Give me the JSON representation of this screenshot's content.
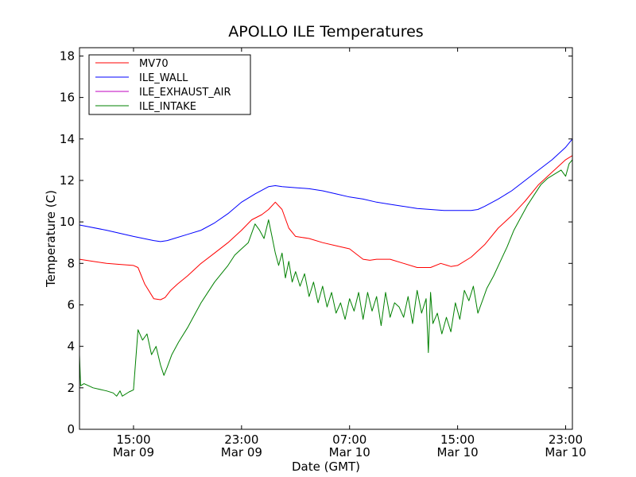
{
  "chart_data": {
    "type": "line",
    "title": "APOLLO ILE Temperatures",
    "xlabel": "Date (GMT)",
    "ylabel": "Temperature (C)",
    "xlim": [
      "2010-03-09 11:00",
      "2010-03-10 23:30"
    ],
    "ylim": [
      0,
      18.4
    ],
    "yticks": [
      0,
      2,
      4,
      6,
      8,
      10,
      12,
      14,
      16,
      18
    ],
    "xticks": [
      {
        "x": "2010-03-09 15:00",
        "time": "15:00",
        "date": "Mar 09"
      },
      {
        "x": "2010-03-09 23:00",
        "time": "23:00",
        "date": "Mar 09"
      },
      {
        "x": "2010-03-10 07:00",
        "time": "07:00",
        "date": "Mar 10"
      },
      {
        "x": "2010-03-10 15:00",
        "time": "15:00",
        "date": "Mar 10"
      },
      {
        "x": "2010-03-10 23:00",
        "time": "23:00",
        "date": "Mar 10"
      }
    ],
    "grid": false,
    "legend_position": "top-left",
    "series": [
      {
        "name": "MV70",
        "color": "#ff0000",
        "x": [
          "2010-03-09 11:00",
          "2010-03-09 12:00",
          "2010-03-09 13:00",
          "2010-03-09 14:00",
          "2010-03-09 15:00",
          "2010-03-09 15:20",
          "2010-03-09 15:50",
          "2010-03-09 16:30",
          "2010-03-09 17:00",
          "2010-03-09 17:20",
          "2010-03-09 17:45",
          "2010-03-09 18:15",
          "2010-03-09 19:00",
          "2010-03-09 20:00",
          "2010-03-09 21:00",
          "2010-03-09 22:00",
          "2010-03-09 23:00",
          "2010-03-09 23:45",
          "2010-03-10 00:30",
          "2010-03-10 01:00",
          "2010-03-10 01:30",
          "2010-03-10 02:00",
          "2010-03-10 02:30",
          "2010-03-10 03:00",
          "2010-03-10 04:00",
          "2010-03-10 05:00",
          "2010-03-10 06:00",
          "2010-03-10 07:00",
          "2010-03-10 08:00",
          "2010-03-10 08:30",
          "2010-03-10 09:00",
          "2010-03-10 10:00",
          "2010-03-10 11:00",
          "2010-03-10 12:00",
          "2010-03-10 13:00",
          "2010-03-10 13:45",
          "2010-03-10 14:15",
          "2010-03-10 14:30",
          "2010-03-10 15:00",
          "2010-03-10 16:00",
          "2010-03-10 17:00",
          "2010-03-10 18:00",
          "2010-03-10 18:30",
          "2010-03-10 19:00",
          "2010-03-10 20:00",
          "2010-03-10 21:00",
          "2010-03-10 22:00",
          "2010-03-10 23:00",
          "2010-03-10 23:30"
        ],
        "y": [
          8.2,
          8.1,
          8.0,
          7.95,
          7.9,
          7.8,
          7.0,
          6.3,
          6.25,
          6.35,
          6.7,
          7.0,
          7.4,
          8.0,
          8.5,
          9.0,
          9.6,
          10.1,
          10.35,
          10.6,
          10.95,
          10.6,
          9.7,
          9.3,
          9.2,
          9.0,
          8.85,
          8.7,
          8.2,
          8.15,
          8.2,
          8.2,
          8.0,
          7.8,
          7.8,
          8.0,
          7.9,
          7.85,
          7.9,
          8.3,
          8.9,
          9.7,
          10.0,
          10.3,
          11.0,
          11.8,
          12.4,
          13.0,
          13.2
        ]
      },
      {
        "name": "ILE_WALL",
        "color": "#0000ff",
        "x": [
          "2010-03-09 11:00",
          "2010-03-09 13:00",
          "2010-03-09 15:00",
          "2010-03-09 16:30",
          "2010-03-09 17:00",
          "2010-03-09 17:30",
          "2010-03-09 18:00",
          "2010-03-09 19:00",
          "2010-03-09 20:00",
          "2010-03-09 21:00",
          "2010-03-09 22:00",
          "2010-03-09 23:00",
          "2010-03-10 00:00",
          "2010-03-10 01:00",
          "2010-03-10 01:30",
          "2010-03-10 02:00",
          "2010-03-10 03:00",
          "2010-03-10 04:00",
          "2010-03-10 05:00",
          "2010-03-10 06:00",
          "2010-03-10 07:00",
          "2010-03-10 08:00",
          "2010-03-10 09:00",
          "2010-03-10 10:00",
          "2010-03-10 11:00",
          "2010-03-10 12:00",
          "2010-03-10 13:00",
          "2010-03-10 14:00",
          "2010-03-10 15:00",
          "2010-03-10 16:00",
          "2010-03-10 16:30",
          "2010-03-10 17:00",
          "2010-03-10 18:00",
          "2010-03-10 19:00",
          "2010-03-10 20:00",
          "2010-03-10 21:00",
          "2010-03-10 22:00",
          "2010-03-10 23:00",
          "2010-03-10 23:30"
        ],
        "y": [
          9.85,
          9.6,
          9.3,
          9.1,
          9.05,
          9.1,
          9.2,
          9.4,
          9.6,
          9.95,
          10.4,
          10.95,
          11.35,
          11.7,
          11.75,
          11.7,
          11.65,
          11.6,
          11.5,
          11.35,
          11.2,
          11.1,
          10.95,
          10.85,
          10.75,
          10.65,
          10.6,
          10.55,
          10.55,
          10.55,
          10.6,
          10.75,
          11.1,
          11.5,
          12.0,
          12.5,
          13.0,
          13.6,
          14.0
        ]
      },
      {
        "name": "ILE_EXHAUST_AIR",
        "color": "#bf00bf",
        "x": [],
        "y": []
      },
      {
        "name": "ILE_INTAKE",
        "color": "#008000",
        "x": [
          "2010-03-09 11:00",
          "2010-03-09 11:05",
          "2010-03-09 11:20",
          "2010-03-09 12:00",
          "2010-03-09 13:00",
          "2010-03-09 13:30",
          "2010-03-09 13:45",
          "2010-03-09 14:00",
          "2010-03-09 14:10",
          "2010-03-09 14:40",
          "2010-03-09 15:00",
          "2010-03-09 15:20",
          "2010-03-09 15:40",
          "2010-03-09 16:00",
          "2010-03-09 16:20",
          "2010-03-09 16:40",
          "2010-03-09 17:00",
          "2010-03-09 17:15",
          "2010-03-09 17:30",
          "2010-03-09 17:50",
          "2010-03-09 18:20",
          "2010-03-09 19:00",
          "2010-03-09 19:30",
          "2010-03-09 20:00",
          "2010-03-09 20:30",
          "2010-03-09 21:00",
          "2010-03-09 21:30",
          "2010-03-09 22:00",
          "2010-03-09 22:30",
          "2010-03-09 23:00",
          "2010-03-09 23:30",
          "2010-03-10 00:00",
          "2010-03-10 00:20",
          "2010-03-10 00:40",
          "2010-03-10 01:00",
          "2010-03-10 01:15",
          "2010-03-10 01:30",
          "2010-03-10 01:45",
          "2010-03-10 02:00",
          "2010-03-10 02:15",
          "2010-03-10 02:30",
          "2010-03-10 02:45",
          "2010-03-10 03:00",
          "2010-03-10 03:20",
          "2010-03-10 03:40",
          "2010-03-10 04:00",
          "2010-03-10 04:20",
          "2010-03-10 04:40",
          "2010-03-10 05:00",
          "2010-03-10 05:20",
          "2010-03-10 05:40",
          "2010-03-10 06:00",
          "2010-03-10 06:20",
          "2010-03-10 06:40",
          "2010-03-10 07:00",
          "2010-03-10 07:20",
          "2010-03-10 07:40",
          "2010-03-10 08:00",
          "2010-03-10 08:20",
          "2010-03-10 08:40",
          "2010-03-10 09:00",
          "2010-03-10 09:20",
          "2010-03-10 09:40",
          "2010-03-10 10:00",
          "2010-03-10 10:20",
          "2010-03-10 10:40",
          "2010-03-10 11:00",
          "2010-03-10 11:20",
          "2010-03-10 11:40",
          "2010-03-10 12:00",
          "2010-03-10 12:20",
          "2010-03-10 12:40",
          "2010-03-10 12:50",
          "2010-03-10 13:00",
          "2010-03-10 13:10",
          "2010-03-10 13:30",
          "2010-03-10 13:50",
          "2010-03-10 14:10",
          "2010-03-10 14:30",
          "2010-03-10 14:50",
          "2010-03-10 15:10",
          "2010-03-10 15:30",
          "2010-03-10 15:50",
          "2010-03-10 16:10",
          "2010-03-10 16:30",
          "2010-03-10 16:50",
          "2010-03-10 17:10",
          "2010-03-10 17:40",
          "2010-03-10 18:10",
          "2010-03-10 18:40",
          "2010-03-10 19:10",
          "2010-03-10 19:40",
          "2010-03-10 20:10",
          "2010-03-10 20:40",
          "2010-03-10 21:10",
          "2010-03-10 21:40",
          "2010-03-10 22:10",
          "2010-03-10 22:40",
          "2010-03-10 23:00",
          "2010-03-10 23:15",
          "2010-03-10 23:30"
        ],
        "y": [
          3.6,
          2.1,
          2.2,
          2.0,
          1.85,
          1.75,
          1.6,
          1.85,
          1.6,
          1.8,
          1.9,
          4.8,
          4.3,
          4.6,
          3.6,
          4.0,
          3.1,
          2.6,
          3.0,
          3.6,
          4.2,
          4.9,
          5.5,
          6.1,
          6.6,
          7.1,
          7.5,
          7.9,
          8.4,
          8.7,
          9.0,
          9.9,
          9.6,
          9.2,
          10.1,
          9.3,
          8.5,
          7.9,
          8.5,
          7.3,
          8.1,
          7.1,
          7.6,
          6.9,
          7.5,
          6.4,
          7.1,
          6.1,
          6.9,
          5.9,
          6.6,
          5.6,
          6.1,
          5.3,
          6.3,
          5.7,
          6.6,
          5.3,
          6.6,
          5.7,
          6.4,
          5.0,
          6.6,
          5.4,
          6.1,
          5.9,
          5.4,
          6.4,
          5.1,
          6.7,
          5.6,
          6.3,
          3.7,
          6.6,
          5.1,
          5.6,
          4.6,
          5.4,
          4.7,
          6.1,
          5.3,
          6.7,
          6.2,
          6.9,
          5.6,
          6.2,
          6.8,
          7.4,
          8.1,
          8.8,
          9.6,
          10.2,
          10.8,
          11.3,
          11.8,
          12.1,
          12.3,
          12.5,
          12.2,
          12.8,
          13.0
        ]
      }
    ]
  }
}
